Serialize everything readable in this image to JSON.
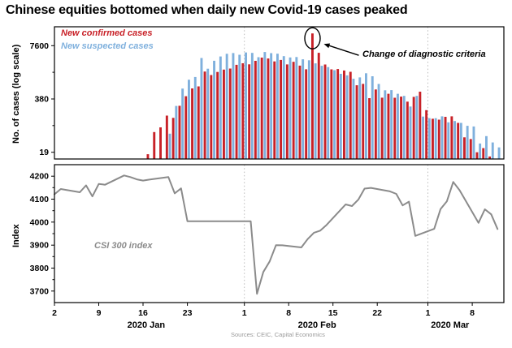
{
  "title": "Chinese equities bottomed when daily new Covid-19 cases peaked",
  "footnote": "Sources: CEIC, Capital Economics",
  "colors": {
    "confirmed": "#c82128",
    "suspected": "#7fb0dd",
    "line": "#8b8b8b",
    "grid": "#bbbbbb",
    "axis": "#000000"
  },
  "xaxis": {
    "domain_days": [
      0,
      71
    ],
    "ticks": [
      {
        "day": 0,
        "label": "2"
      },
      {
        "day": 7,
        "label": "9"
      },
      {
        "day": 14,
        "label": "16"
      },
      {
        "day": 21,
        "label": "23"
      },
      {
        "day": 30,
        "label": "1"
      },
      {
        "day": 37,
        "label": "8"
      },
      {
        "day": 44,
        "label": "15"
      },
      {
        "day": 51,
        "label": "22"
      },
      {
        "day": 59,
        "label": "1"
      },
      {
        "day": 66,
        "label": "8"
      }
    ],
    "month_labels": [
      {
        "label": "2020 Jan",
        "center_day": 14.5
      },
      {
        "label": "2020 Feb",
        "center_day": 41.5
      },
      {
        "label": "2020 Mar",
        "center_day": 62.5
      }
    ],
    "gridline_days": [
      30,
      59
    ]
  },
  "chart_data": [
    {
      "type": "bar",
      "panel": "top",
      "ylabel": "No. of cases (log scale)",
      "yscale": "log",
      "ylim": [
        13,
        22000
      ],
      "yticks": [
        19,
        380,
        7600
      ],
      "yticks_minor": [
        85,
        1700
      ],
      "legend": [
        {
          "label": "New confirmed cases",
          "color": "#c82128"
        },
        {
          "label": "New suspected cases",
          "color": "#7fb0dd"
        }
      ],
      "annotation": "Change of diagnostic criteria",
      "peak_annotation_date": "12 Feb",
      "start_day_index": 14,
      "dates": [
        "16 Jan",
        "17 Jan",
        "18 Jan",
        "19 Jan",
        "20 Jan",
        "21 Jan",
        "22 Jan",
        "23 Jan",
        "24 Jan",
        "25 Jan",
        "26 Jan",
        "27 Jan",
        "28 Jan",
        "29 Jan",
        "30 Jan",
        "31 Jan",
        "1 Feb",
        "2 Feb",
        "3 Feb",
        "4 Feb",
        "5 Feb",
        "6 Feb",
        "7 Feb",
        "8 Feb",
        "9 Feb",
        "10 Feb",
        "11 Feb",
        "12 Feb",
        "13 Feb",
        "14 Feb",
        "15 Feb",
        "16 Feb",
        "17 Feb",
        "18 Feb",
        "19 Feb",
        "20 Feb",
        "21 Feb",
        "22 Feb",
        "23 Feb",
        "24 Feb",
        "25 Feb",
        "26 Feb",
        "27 Feb",
        "28 Feb",
        "29 Feb",
        "1 Mar",
        "2 Mar",
        "3 Mar",
        "4 Mar",
        "5 Mar",
        "6 Mar",
        "7 Mar",
        "8 Mar",
        "9 Mar",
        "10 Mar",
        "11 Mar",
        "12 Mar"
      ],
      "series": [
        {
          "name": "New confirmed cases",
          "values": [
            4,
            17,
            59,
            77,
            149,
            131,
            259,
            444,
            688,
            769,
            1771,
            1459,
            1737,
            1982,
            2102,
            2590,
            2829,
            2657,
            3235,
            3887,
            3694,
            3143,
            3399,
            2656,
            3062,
            2478,
            2015,
            15152,
            5090,
            2641,
            2009,
            2048,
            1886,
            1749,
            820,
            889,
            397,
            648,
            409,
            508,
            406,
            433,
            327,
            427,
            573,
            202,
            125,
            119,
            139,
            143,
            99,
            44,
            40,
            19,
            24,
            15,
            8
          ]
        },
        {
          "name": "New suspected cases",
          "values": [
            null,
            null,
            null,
            null,
            54,
            257,
            680,
            1118,
            1309,
            3806,
            2077,
            3248,
            4148,
            4812,
            5019,
            4562,
            5173,
            5072,
            3971,
            5328,
            5002,
            4833,
            4214,
            3916,
            4008,
            3536,
            3342,
            2807,
            2450,
            2277,
            1918,
            1563,
            1432,
            1185,
            1277,
            1614,
            1361,
            882,
            620,
            624,
            508,
            452,
            248,
            452,
            141,
            129,
            129,
            143,
            102,
            110,
            99,
            84,
            81,
            31,
            47,
            33,
            25
          ]
        }
      ]
    },
    {
      "type": "line",
      "panel": "bottom",
      "label": "CSI 300 index",
      "ylabel": "Index",
      "ylim": [
        3650,
        4250
      ],
      "yticks": [
        3700,
        3800,
        3900,
        4000,
        4100,
        4200
      ],
      "points": [
        {
          "day": 0,
          "date": "2 Jan",
          "value": 4121
        },
        {
          "day": 1,
          "date": "3 Jan",
          "value": 4144
        },
        {
          "day": 4,
          "date": "6 Jan",
          "value": 4130
        },
        {
          "day": 5,
          "date": "7 Jan",
          "value": 4160
        },
        {
          "day": 6,
          "date": "8 Jan",
          "value": 4112
        },
        {
          "day": 7,
          "date": "9 Jan",
          "value": 4166
        },
        {
          "day": 8,
          "date": "10 Jan",
          "value": 4163
        },
        {
          "day": 11,
          "date": "13 Jan",
          "value": 4203
        },
        {
          "day": 12,
          "date": "14 Jan",
          "value": 4196
        },
        {
          "day": 13,
          "date": "15 Jan",
          "value": 4186
        },
        {
          "day": 14,
          "date": "16 Jan",
          "value": 4181
        },
        {
          "day": 15,
          "date": "17 Jan",
          "value": 4185
        },
        {
          "day": 18,
          "date": "20 Jan",
          "value": 4196
        },
        {
          "day": 19,
          "date": "21 Jan",
          "value": 4125
        },
        {
          "day": 20,
          "date": "22 Jan",
          "value": 4147
        },
        {
          "day": 21,
          "date": "23 Jan",
          "value": 4004
        },
        {
          "day": 31,
          "date": "2 Feb",
          "value": 4004
        },
        {
          "day": 32,
          "date": "3 Feb",
          "value": 3688
        },
        {
          "day": 33,
          "date": "4 Feb",
          "value": 3783
        },
        {
          "day": 34,
          "date": "5 Feb",
          "value": 3829
        },
        {
          "day": 35,
          "date": "6 Feb",
          "value": 3900
        },
        {
          "day": 36,
          "date": "7 Feb",
          "value": 3899
        },
        {
          "day": 39,
          "date": "10 Feb",
          "value": 3890
        },
        {
          "day": 40,
          "date": "11 Feb",
          "value": 3926
        },
        {
          "day": 41,
          "date": "12 Feb",
          "value": 3954
        },
        {
          "day": 42,
          "date": "13 Feb",
          "value": 3963
        },
        {
          "day": 43,
          "date": "14 Feb",
          "value": 3988
        },
        {
          "day": 46,
          "date": "17 Feb",
          "value": 4077
        },
        {
          "day": 47,
          "date": "18 Feb",
          "value": 4070
        },
        {
          "day": 48,
          "date": "19 Feb",
          "value": 4098
        },
        {
          "day": 49,
          "date": "20 Feb",
          "value": 4146
        },
        {
          "day": 50,
          "date": "21 Feb",
          "value": 4149
        },
        {
          "day": 53,
          "date": "24 Feb",
          "value": 4134
        },
        {
          "day": 54,
          "date": "25 Feb",
          "value": 4123
        },
        {
          "day": 55,
          "date": "26 Feb",
          "value": 4073
        },
        {
          "day": 56,
          "date": "27 Feb",
          "value": 4089
        },
        {
          "day": 57,
          "date": "28 Feb",
          "value": 3940
        },
        {
          "day": 60,
          "date": "2 Mar",
          "value": 3971
        },
        {
          "day": 61,
          "date": "3 Mar",
          "value": 4057
        },
        {
          "day": 62,
          "date": "4 Mar",
          "value": 4091
        },
        {
          "day": 63,
          "date": "5 Mar",
          "value": 4175
        },
        {
          "day": 64,
          "date": "6 Mar",
          "value": 4139
        },
        {
          "day": 67,
          "date": "9 Mar",
          "value": 3997
        },
        {
          "day": 68,
          "date": "10 Mar",
          "value": 4056
        },
        {
          "day": 69,
          "date": "11 Mar",
          "value": 4034
        },
        {
          "day": 70,
          "date": "12 Mar",
          "value": 3970
        }
      ]
    }
  ]
}
